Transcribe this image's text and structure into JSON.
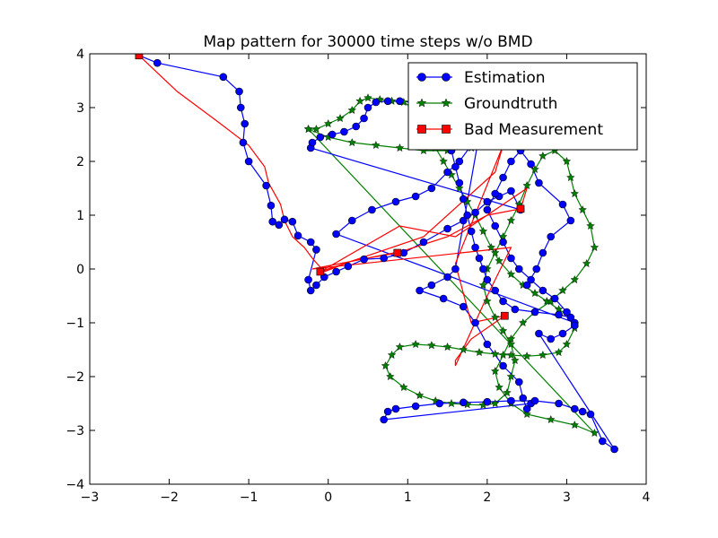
{
  "chart_data": {
    "type": "line",
    "title": "Map pattern for 30000 time steps w/o BMD",
    "xlabel": "",
    "ylabel": "",
    "xlim": [
      -3,
      4
    ],
    "ylim": [
      -4,
      4
    ],
    "xticks": [
      -3,
      -2,
      -1,
      0,
      1,
      2,
      3,
      4
    ],
    "yticks": [
      -4,
      -3,
      -2,
      -1,
      0,
      1,
      2,
      3,
      4
    ],
    "xtick_labels": [
      "−3",
      "−2",
      "−1",
      "0",
      "1",
      "2",
      "3",
      "4"
    ],
    "ytick_labels": [
      "−4",
      "−3",
      "−2",
      "−1",
      "0",
      "1",
      "2",
      "3",
      "4"
    ],
    "grid": false,
    "legend_position": "top-right",
    "series": [
      {
        "name": "Estimation",
        "color": "#0000ff",
        "marker": "circle",
        "points": [
          [
            -2.38,
            3.97
          ],
          [
            -2.15,
            3.83
          ],
          [
            -1.32,
            3.57
          ],
          [
            -1.12,
            3.3
          ],
          [
            -1.1,
            3.0
          ],
          [
            -1.05,
            2.7
          ],
          [
            -1.07,
            2.35
          ],
          [
            -1.0,
            2.0
          ],
          [
            -0.78,
            1.55
          ],
          [
            -0.72,
            1.18
          ],
          [
            -0.7,
            0.88
          ],
          [
            -0.62,
            0.82
          ],
          [
            -0.55,
            0.92
          ],
          [
            -0.45,
            0.88
          ],
          [
            -0.38,
            0.62
          ],
          [
            -0.22,
            0.5
          ],
          [
            -0.15,
            0.36
          ],
          [
            -0.25,
            -0.2
          ],
          [
            -0.22,
            -0.4
          ],
          [
            -0.15,
            -0.3
          ],
          [
            -0.05,
            -0.15
          ],
          [
            0.1,
            -0.05
          ],
          [
            0.25,
            0.05
          ],
          [
            0.45,
            0.18
          ],
          [
            0.7,
            0.2
          ],
          [
            0.95,
            0.3
          ],
          [
            1.2,
            0.5
          ],
          [
            1.5,
            0.75
          ],
          [
            1.7,
            0.9
          ],
          [
            1.85,
            1.05
          ],
          [
            2.0,
            1.25
          ],
          [
            2.15,
            1.35
          ],
          [
            2.3,
            1.45
          ],
          [
            2.42,
            1.1
          ],
          [
            -0.22,
            2.25
          ],
          [
            -0.2,
            2.35
          ],
          [
            -0.1,
            2.45
          ],
          [
            0.05,
            2.5
          ],
          [
            0.2,
            2.55
          ],
          [
            0.35,
            2.65
          ],
          [
            0.45,
            2.8
          ],
          [
            0.5,
            3.0
          ],
          [
            0.6,
            3.1
          ],
          [
            0.75,
            3.12
          ],
          [
            0.9,
            3.12
          ],
          [
            1.05,
            3.1
          ],
          [
            1.15,
            3.0
          ],
          [
            1.25,
            2.8
          ],
          [
            1.4,
            2.5
          ],
          [
            1.55,
            2.2
          ],
          [
            1.6,
            1.9
          ],
          [
            1.65,
            1.6
          ],
          [
            1.7,
            1.3
          ],
          [
            1.75,
            1.0
          ],
          [
            1.8,
            0.7
          ],
          [
            1.85,
            0.4
          ],
          [
            1.9,
            0.2
          ],
          [
            1.95,
            0.0
          ],
          [
            2.0,
            -0.2
          ],
          [
            2.1,
            -0.4
          ],
          [
            2.2,
            -0.6
          ],
          [
            2.35,
            -0.75
          ],
          [
            2.6,
            -0.8
          ],
          [
            2.9,
            -0.85
          ],
          [
            3.05,
            -0.9
          ],
          [
            3.1,
            -1.0
          ],
          [
            0.1,
            0.65
          ],
          [
            0.3,
            0.9
          ],
          [
            0.55,
            1.1
          ],
          [
            0.85,
            1.25
          ],
          [
            1.1,
            1.35
          ],
          [
            1.3,
            1.5
          ],
          [
            1.5,
            1.8
          ],
          [
            1.65,
            2.0
          ],
          [
            1.8,
            2.3
          ],
          [
            1.9,
            2.5
          ],
          [
            1.6,
            0.0
          ],
          [
            1.5,
            -0.15
          ],
          [
            1.3,
            -0.3
          ],
          [
            1.15,
            -0.4
          ],
          [
            1.45,
            -0.55
          ],
          [
            1.7,
            -0.7
          ],
          [
            1.85,
            -1.0
          ],
          [
            2.0,
            -1.4
          ],
          [
            2.2,
            -1.8
          ],
          [
            2.4,
            -2.1
          ],
          [
            2.45,
            -2.4
          ],
          [
            2.5,
            -2.6
          ],
          [
            2.55,
            -2.5
          ],
          [
            0.7,
            -2.8
          ],
          [
            0.75,
            -2.65
          ],
          [
            0.85,
            -2.6
          ],
          [
            1.1,
            -2.55
          ],
          [
            1.4,
            -2.5
          ],
          [
            1.7,
            -2.48
          ],
          [
            2.0,
            -2.47
          ],
          [
            2.3,
            -2.45
          ],
          [
            2.6,
            -2.45
          ],
          [
            2.9,
            -2.5
          ],
          [
            3.1,
            -2.6
          ],
          [
            3.2,
            -2.65
          ],
          [
            3.3,
            -2.7
          ],
          [
            3.45,
            -3.2
          ],
          [
            3.6,
            -3.35
          ],
          [
            2.65,
            -1.2
          ],
          [
            2.8,
            -1.3
          ],
          [
            2.95,
            -1.2
          ],
          [
            3.1,
            -1.05
          ],
          [
            3.0,
            -0.8
          ],
          [
            2.85,
            -0.55
          ],
          [
            2.7,
            -0.4
          ],
          [
            2.55,
            -0.2
          ],
          [
            2.4,
            0.0
          ],
          [
            2.3,
            0.2
          ],
          [
            2.2,
            0.5
          ],
          [
            2.1,
            0.8
          ],
          [
            2.0,
            1.1
          ],
          [
            2.1,
            1.4
          ],
          [
            2.2,
            1.7
          ],
          [
            2.3,
            2.0
          ],
          [
            2.42,
            2.2
          ],
          [
            2.55,
            1.95
          ],
          [
            2.65,
            1.6
          ],
          [
            2.95,
            1.2
          ],
          [
            3.05,
            0.9
          ],
          [
            2.8,
            0.6
          ],
          [
            2.7,
            0.3
          ],
          [
            2.62,
            0.0
          ],
          [
            2.5,
            -0.3
          ]
        ]
      },
      {
        "name": "Groundtruth",
        "color": "#007f00",
        "marker": "star",
        "points": [
          [
            -0.25,
            2.6
          ],
          [
            -0.15,
            2.6
          ],
          [
            0.0,
            2.7
          ],
          [
            0.15,
            2.8
          ],
          [
            0.3,
            2.95
          ],
          [
            0.4,
            3.12
          ],
          [
            0.5,
            3.18
          ],
          [
            0.65,
            3.15
          ],
          [
            0.8,
            3.12
          ],
          [
            0.95,
            3.1
          ],
          [
            1.05,
            3.0
          ],
          [
            1.1,
            2.8
          ],
          [
            1.2,
            2.5
          ],
          [
            1.35,
            2.25
          ],
          [
            1.45,
            2.0
          ],
          [
            1.55,
            1.75
          ],
          [
            1.65,
            1.5
          ],
          [
            1.75,
            1.25
          ],
          [
            1.85,
            1.0
          ],
          [
            1.95,
            0.7
          ],
          [
            2.05,
            0.4
          ],
          [
            2.15,
            0.15
          ],
          [
            2.3,
            -0.1
          ],
          [
            2.45,
            -0.3
          ],
          [
            2.6,
            -0.45
          ],
          [
            2.75,
            -0.6
          ],
          [
            2.9,
            -0.75
          ],
          [
            3.05,
            -0.9
          ],
          [
            3.1,
            -1.1
          ],
          [
            3.0,
            -1.4
          ],
          [
            2.9,
            -1.55
          ],
          [
            2.7,
            -1.6
          ],
          [
            2.5,
            -1.62
          ],
          [
            2.3,
            -1.6
          ],
          [
            2.1,
            -1.58
          ],
          [
            1.9,
            -1.55
          ],
          [
            1.7,
            -1.5
          ],
          [
            1.5,
            -1.45
          ],
          [
            1.3,
            -1.42
          ],
          [
            1.1,
            -1.4
          ],
          [
            0.9,
            -1.45
          ],
          [
            0.8,
            -1.6
          ],
          [
            0.72,
            -1.8
          ],
          [
            0.78,
            -2.0
          ],
          [
            0.95,
            -2.2
          ],
          [
            1.15,
            -2.35
          ],
          [
            1.35,
            -2.45
          ],
          [
            1.55,
            -2.5
          ],
          [
            1.75,
            -2.52
          ],
          [
            1.95,
            -2.53
          ],
          [
            2.1,
            -2.5
          ],
          [
            2.25,
            -2.3
          ],
          [
            2.3,
            -2.0
          ],
          [
            2.35,
            -1.7
          ],
          [
            2.3,
            -1.4
          ],
          [
            2.2,
            -1.15
          ],
          [
            2.1,
            -0.9
          ],
          [
            2.0,
            -0.6
          ],
          [
            1.95,
            -0.3
          ],
          [
            2.0,
            0.0
          ],
          [
            2.1,
            0.3
          ],
          [
            2.2,
            0.6
          ],
          [
            2.3,
            0.9
          ],
          [
            2.4,
            1.2
          ],
          [
            2.5,
            1.55
          ],
          [
            2.6,
            1.85
          ],
          [
            2.7,
            2.1
          ],
          [
            2.85,
            2.2
          ],
          [
            3.0,
            2.0
          ],
          [
            3.05,
            1.7
          ],
          [
            3.1,
            1.4
          ],
          [
            3.2,
            1.1
          ],
          [
            3.3,
            0.8
          ],
          [
            3.35,
            0.4
          ],
          [
            3.25,
            0.1
          ],
          [
            3.1,
            -0.2
          ],
          [
            2.95,
            -0.4
          ],
          [
            2.8,
            -0.6
          ],
          [
            2.6,
            -0.8
          ],
          [
            2.45,
            -1.0
          ],
          [
            2.3,
            -1.3
          ],
          [
            2.2,
            -1.6
          ],
          [
            2.1,
            -1.9
          ],
          [
            2.15,
            -2.2
          ],
          [
            2.3,
            -2.5
          ],
          [
            2.5,
            -2.7
          ],
          [
            2.8,
            -2.8
          ],
          [
            3.1,
            -2.9
          ],
          [
            3.35,
            -3.05
          ],
          [
            -0.25,
            2.6
          ],
          [
            0.0,
            2.45
          ],
          [
            0.3,
            2.35
          ],
          [
            0.6,
            2.3
          ],
          [
            0.9,
            2.25
          ],
          [
            1.2,
            2.2
          ],
          [
            1.5,
            2.2
          ],
          [
            1.8,
            2.25
          ],
          [
            2.1,
            2.35
          ],
          [
            2.3,
            2.45
          ]
        ]
      },
      {
        "name": "Bad Measurement",
        "color": "#ff0000",
        "marker": "square",
        "points": [
          [
            -2.38,
            3.97
          ],
          [
            -1.9,
            3.3
          ],
          [
            -1.4,
            2.75
          ],
          [
            -1.0,
            2.3
          ],
          [
            -0.8,
            1.9
          ],
          [
            -0.75,
            1.6
          ],
          [
            -0.6,
            1.2
          ],
          [
            -0.55,
            0.9
          ],
          [
            -0.45,
            0.6
          ],
          [
            -0.3,
            0.4
          ],
          [
            -0.2,
            0.2
          ],
          [
            -0.05,
            -0.05
          ],
          [
            0.3,
            0.15
          ],
          [
            0.87,
            0.3
          ],
          [
            1.5,
            0.6
          ],
          [
            2.0,
            1.0
          ],
          [
            2.42,
            1.12
          ],
          [
            2.5,
            1.5
          ],
          [
            1.6,
            0.6
          ],
          [
            0.9,
            0.8
          ],
          [
            -0.1,
            -0.05
          ],
          [
            1.2,
            0.6
          ],
          [
            2.1,
            1.8
          ],
          [
            2.2,
            2.3
          ],
          [
            1.9,
            1.2
          ],
          [
            1.6,
            0.1
          ],
          [
            1.8,
            -1.0
          ],
          [
            2.22,
            -0.87
          ],
          [
            1.8,
            -1.3
          ],
          [
            1.6,
            -1.7
          ],
          [
            1.6,
            -1.8
          ],
          [
            2.0,
            -0.5
          ],
          [
            2.3,
            0.4
          ],
          [
            -0.2,
            0.0
          ],
          [
            1.0,
            0.35
          ]
        ]
      }
    ]
  }
}
